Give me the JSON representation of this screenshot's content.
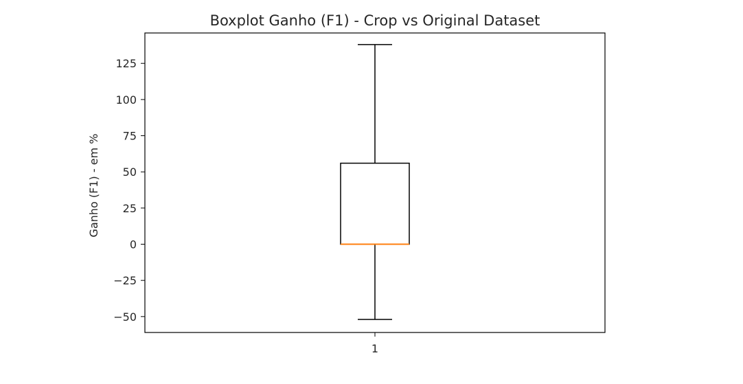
{
  "chart_data": {
    "type": "boxplot",
    "title": "Boxplot Ganho (F1) - Crop vs Original Dataset",
    "xlabel": "",
    "ylabel": "Ganho (F1) - em %",
    "categories": [
      "1"
    ],
    "boxes": [
      {
        "category": "1",
        "whisker_low": -52,
        "q1": 0,
        "median": 0,
        "q3": 56,
        "whisker_high": 138
      }
    ],
    "yticks": [
      -50,
      -25,
      0,
      25,
      50,
      75,
      100,
      125
    ],
    "ylim": [
      -61,
      146
    ],
    "grid": false,
    "colors": {
      "box": "#000000",
      "median": "#ff7f0e",
      "frame": "#000000"
    }
  }
}
